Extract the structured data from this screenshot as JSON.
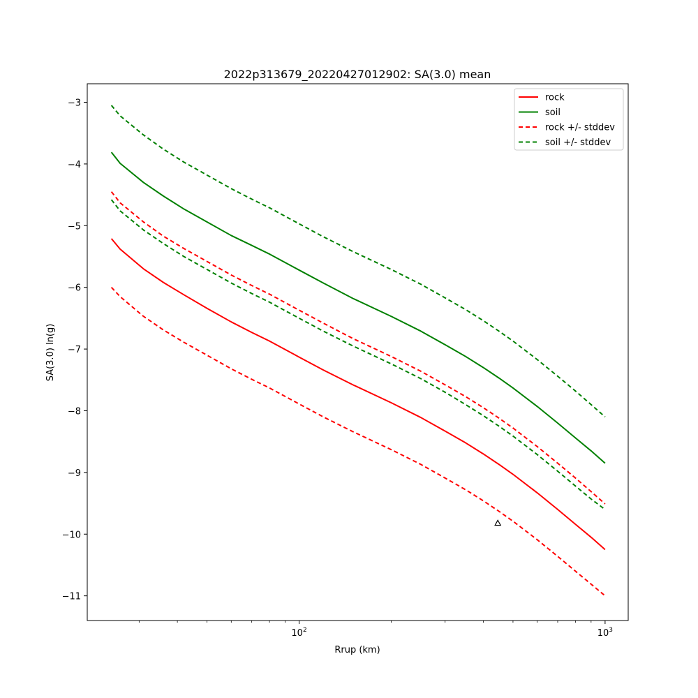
{
  "chart_data": {
    "type": "line",
    "title": "2022p313679_20220427012902: SA(3.0) mean",
    "xlabel": "Rrup (km)",
    "ylabel": "SA(3.0) ln(g)",
    "xscale": "log",
    "xlim": [
      20.3,
      1190
    ],
    "ylim": [
      -11.4,
      -2.7
    ],
    "grid": false,
    "legend_position": "top-right",
    "x_ticks": [
      {
        "value": 100,
        "base": "10",
        "exp": "2"
      },
      {
        "value": 1000,
        "base": "10",
        "exp": "3"
      }
    ],
    "x_minor_ticks": [
      30,
      40,
      50,
      60,
      70,
      80,
      90,
      200,
      300,
      400,
      500,
      600,
      700,
      800,
      900
    ],
    "y_ticks": [
      {
        "value": -3,
        "label": "−3"
      },
      {
        "value": -4,
        "label": "−4"
      },
      {
        "value": -5,
        "label": "−5"
      },
      {
        "value": -6,
        "label": "−6"
      },
      {
        "value": -7,
        "label": "−7"
      },
      {
        "value": -8,
        "label": "−8"
      },
      {
        "value": -9,
        "label": "−9"
      },
      {
        "value": -10,
        "label": "−10"
      },
      {
        "value": -11,
        "label": "−11"
      }
    ],
    "x": [
      24.35,
      26,
      31,
      36,
      42,
      50,
      60,
      70,
      80,
      100,
      120,
      150,
      200,
      250,
      300,
      350,
      400,
      450,
      500,
      600,
      700,
      800,
      900,
      1000
    ],
    "series": [
      {
        "name": "rock",
        "color": "#ff0000",
        "dash": "solid",
        "values": [
          -5.21,
          -5.38,
          -5.7,
          -5.92,
          -6.12,
          -6.34,
          -6.56,
          -6.73,
          -6.87,
          -7.13,
          -7.34,
          -7.58,
          -7.87,
          -8.11,
          -8.33,
          -8.52,
          -8.7,
          -8.87,
          -9.03,
          -9.33,
          -9.6,
          -9.84,
          -10.05,
          -10.25
        ]
      },
      {
        "name": "soil",
        "color": "#008000",
        "dash": "solid",
        "values": [
          -3.81,
          -3.99,
          -4.3,
          -4.52,
          -4.73,
          -4.94,
          -5.16,
          -5.32,
          -5.46,
          -5.72,
          -5.93,
          -6.18,
          -6.47,
          -6.71,
          -6.93,
          -7.12,
          -7.3,
          -7.47,
          -7.63,
          -7.93,
          -8.2,
          -8.44,
          -8.65,
          -8.85
        ]
      },
      {
        "name": "rock +/- stddev",
        "color": "#ff0000",
        "dash": "dashed",
        "values": [
          -4.45,
          -4.63,
          -4.94,
          -5.17,
          -5.37,
          -5.58,
          -5.8,
          -5.97,
          -6.11,
          -6.37,
          -6.58,
          -6.83,
          -7.12,
          -7.36,
          -7.58,
          -7.77,
          -7.95,
          -8.12,
          -8.28,
          -8.58,
          -8.85,
          -9.09,
          -9.31,
          -9.51
        ]
      },
      {
        "name": "",
        "color": "#ff0000",
        "dash": "dashed",
        "values": [
          -6.0,
          -6.15,
          -6.47,
          -6.69,
          -6.89,
          -7.1,
          -7.32,
          -7.49,
          -7.63,
          -7.89,
          -8.1,
          -8.34,
          -8.63,
          -8.87,
          -9.09,
          -9.28,
          -9.46,
          -9.63,
          -9.79,
          -10.09,
          -10.36,
          -10.6,
          -10.81,
          -11.0
        ]
      },
      {
        "name": "soil +/- stddev",
        "color": "#008000",
        "dash": "dashed",
        "values": [
          -3.05,
          -3.22,
          -3.53,
          -3.76,
          -3.97,
          -4.18,
          -4.4,
          -4.57,
          -4.71,
          -4.97,
          -5.18,
          -5.42,
          -5.71,
          -5.95,
          -6.17,
          -6.36,
          -6.54,
          -6.71,
          -6.87,
          -7.17,
          -7.44,
          -7.68,
          -7.9,
          -8.1
        ]
      },
      {
        "name": "",
        "color": "#008000",
        "dash": "dashed",
        "values": [
          -4.58,
          -4.76,
          -5.07,
          -5.29,
          -5.5,
          -5.71,
          -5.93,
          -6.1,
          -6.24,
          -6.5,
          -6.71,
          -6.95,
          -7.24,
          -7.48,
          -7.7,
          -7.9,
          -8.08,
          -8.25,
          -8.41,
          -8.71,
          -8.98,
          -9.22,
          -9.43,
          -9.6
        ]
      }
    ],
    "markers": [
      {
        "name": "observation",
        "symbol": "triangle-open",
        "color": "#000000",
        "x": 446,
        "y": -9.82
      }
    ],
    "legend": [
      {
        "label": "rock",
        "color": "#ff0000",
        "dash": "solid"
      },
      {
        "label": "soil",
        "color": "#008000",
        "dash": "solid"
      },
      {
        "label": "rock +/- stddev",
        "color": "#ff0000",
        "dash": "dashed"
      },
      {
        "label": "soil +/- stddev",
        "color": "#008000",
        "dash": "dashed"
      }
    ]
  }
}
